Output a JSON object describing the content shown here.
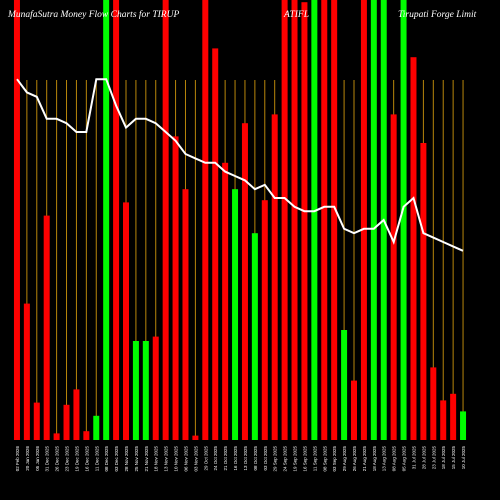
{
  "chart_data": {
    "type": "bar",
    "title_left": "MunafaSutra  Money Flow  Charts for TIRUP",
    "title_mid": "ATIFL",
    "title_right": "Tirupati  Forge  Limit",
    "ylim": [
      0,
      100
    ],
    "colors": {
      "up": "#00ff00",
      "down": "#ff0000",
      "line": "#ffffff",
      "grid": "#b8860b",
      "background": "#000000"
    },
    "categories": [
      "02 Feb 2026",
      "20 Jan 2026",
      "05 Jan 2026",
      "31 Dec 2025",
      "26 Dec 2025",
      "23 Dec 2025",
      "19 Dec 2025",
      "16 Dec 2025",
      "11 Dec 2025",
      "08 Dec 2025",
      "03 Dec 2025",
      "28 Nov 2025",
      "25 Nov 2025",
      "21 Nov 2025",
      "18 Nov 2025",
      "13 Nov 2025",
      "10 Nov 2025",
      "06 Nov 2025",
      "03 Nov 2025",
      "29 Oct 2025",
      "24 Oct 2025",
      "21 Oct 2025",
      "16 Oct 2025",
      "13 Oct 2025",
      "08 Oct 2025",
      "03 Oct 2025",
      "29 Sep 2025",
      "24 Sep 2025",
      "19 Sep 2025",
      "16 Sep 2025",
      "11 Sep 2025",
      "08 Sep 2025",
      "03 Sep 2025",
      "29 Aug 2025",
      "26 Aug 2025",
      "21 Aug 2025",
      "18 Aug 2025",
      "13 Aug 2025",
      "08 Aug 2025",
      "05 Aug 2025",
      "31 Jul 2025",
      "28 Jul 2025",
      "23 Jul 2025",
      "18 Jul 2025",
      "15 Jul 2025",
      "10 Jul 2025"
    ],
    "values": [
      100,
      31,
      8.5,
      51,
      1.5,
      8,
      11.5,
      2,
      5.5,
      100,
      100,
      54,
      22.5,
      22.5,
      23.5,
      100,
      69,
      57,
      1,
      100,
      89,
      63,
      57,
      72,
      47,
      54.5,
      74,
      100,
      100,
      99.5,
      100,
      100,
      100,
      25,
      13.5,
      100,
      100,
      100,
      74,
      100,
      87,
      67.5,
      16.5,
      9,
      10.5,
      6.5
    ],
    "directions": [
      "down",
      "down",
      "down",
      "down",
      "down",
      "down",
      "down",
      "down",
      "up",
      "up",
      "down",
      "down",
      "up",
      "up",
      "down",
      "down",
      "down",
      "down",
      "down",
      "down",
      "down",
      "down",
      "up",
      "down",
      "up",
      "down",
      "down",
      "down",
      "down",
      "down",
      "up",
      "down",
      "down",
      "up",
      "down",
      "down",
      "up",
      "up",
      "down",
      "up",
      "down",
      "down",
      "down",
      "down",
      "down",
      "up"
    ],
    "line_values": [
      82,
      79,
      78,
      73,
      73,
      72,
      70,
      70,
      82,
      82,
      76,
      71,
      73,
      73,
      72,
      70,
      68,
      65,
      64,
      63,
      63,
      61,
      60,
      59,
      57,
      58,
      55,
      55,
      53,
      52,
      52,
      53,
      53,
      48,
      47,
      48,
      48,
      50,
      45,
      53,
      55,
      47,
      46,
      45,
      44,
      43
    ]
  }
}
